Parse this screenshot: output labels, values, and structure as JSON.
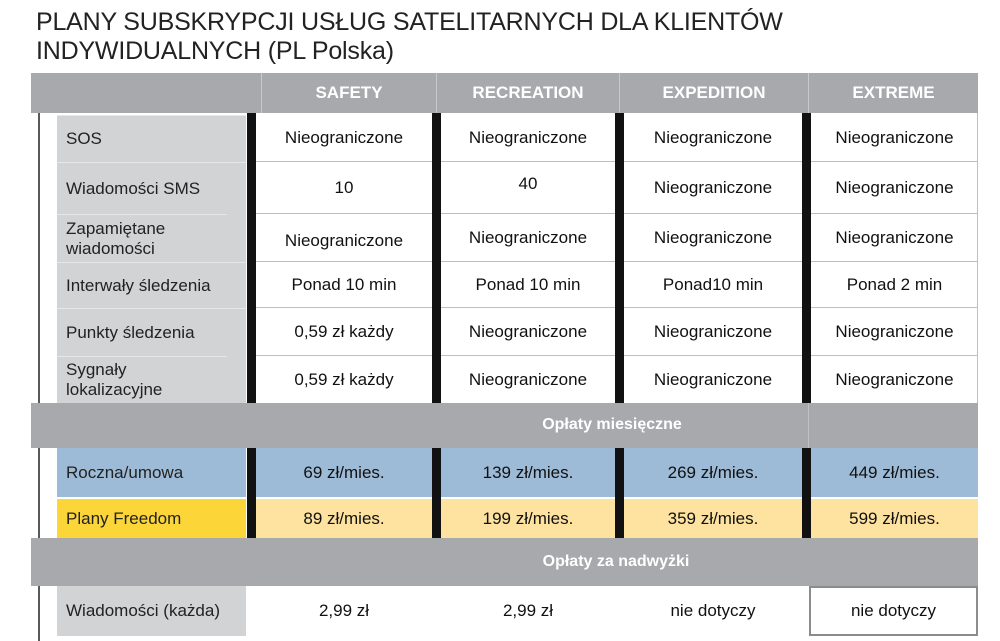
{
  "title": {
    "line1": "PLANY SUBSKRYPCJI USŁUG SATELITARNYCH DLA KLIENTÓW",
    "line2": "INDYWIDUALNYCH (PL Polska)"
  },
  "plans": [
    "SAFETY",
    "RECREATION",
    "EXPEDITION",
    "EXTREME"
  ],
  "features": [
    {
      "label": "SOS",
      "values": [
        "Nieograniczone",
        "Nieograniczone",
        "Nieograniczone",
        "Nieograniczone"
      ]
    },
    {
      "label": "Wiadomości SMS",
      "values": [
        "10",
        "40",
        "Nieograniczone",
        "Nieograniczone"
      ]
    },
    {
      "label": "Zapamiętane wiadomości",
      "values": [
        "Nieograniczone",
        "Nieograniczone",
        "Nieograniczone",
        "Nieograniczone"
      ]
    },
    {
      "label": "Interwały śledzenia",
      "values": [
        "Ponad 10 min",
        "Ponad 10 min",
        "Ponad10 min",
        "Ponad 2 min"
      ]
    },
    {
      "label": "Punkty śledzenia",
      "values": [
        "0,59 zł każdy",
        "Nieograniczone",
        "Nieograniczone",
        "Nieograniczone"
      ]
    },
    {
      "label": "Sygnały lokalizacyjne",
      "values": [
        "0,59 zł każdy",
        "Nieograniczone",
        "Nieograniczone",
        "Nieograniczone"
      ]
    }
  ],
  "monthly_section": "Opłaty miesięczne",
  "monthly": [
    {
      "label": "Roczna/umowa",
      "values": [
        "69 zł/mies.",
        "139 zł/mies.",
        "269 zł/mies.",
        "449 zł/mies."
      ]
    },
    {
      "label": "Plany Freedom",
      "values": [
        "89 zł/mies.",
        "199 zł/mies.",
        "359 zł/mies.",
        "599 zł/mies."
      ]
    }
  ],
  "overage_section": "Opłaty za nadwyżki",
  "overage": [
    {
      "label": "Wiadomości (każda)",
      "values": [
        "2,99 zł",
        "2,99 zł",
        "nie dotyczy",
        "nie dotyczy"
      ]
    }
  ],
  "colors": {
    "header_gray": "#a7a9ac",
    "label_gray": "#d1d3d4",
    "annual_blue": "#9dbbd6",
    "freedom_yellow": "#fcd538",
    "freedom_cream": "#fde2a0"
  }
}
